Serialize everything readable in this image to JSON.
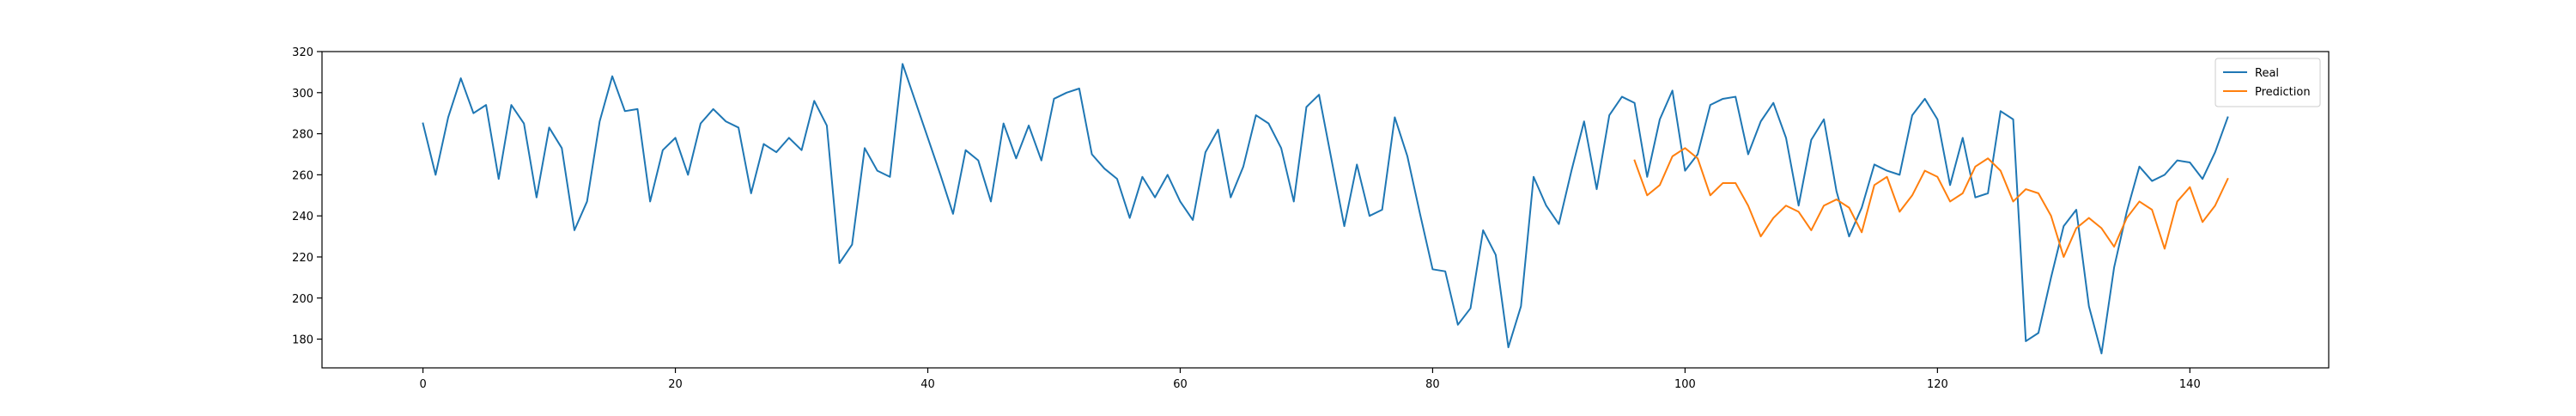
{
  "chart_data": {
    "type": "line",
    "title": "",
    "xlabel": "",
    "ylabel": "",
    "xlim": [
      -8,
      151
    ],
    "ylim": [
      166,
      320
    ],
    "x_ticks": [
      0,
      20,
      40,
      60,
      80,
      100,
      120,
      140
    ],
    "y_ticks": [
      180,
      200,
      220,
      240,
      260,
      280,
      300,
      320
    ],
    "grid": false,
    "legend_position": "top-right",
    "series": [
      {
        "name": "Real",
        "color": "#1f77b4",
        "x_start": 0,
        "values": [
          285,
          260,
          288,
          307,
          290,
          294,
          258,
          294,
          285,
          249,
          283,
          273,
          233,
          247,
          286,
          308,
          291,
          292,
          247,
          272,
          278,
          260,
          285,
          292,
          286,
          283,
          251,
          275,
          271,
          278,
          272,
          296,
          284,
          217,
          226,
          273,
          262,
          259,
          314,
          296,
          278,
          260,
          241,
          272,
          267,
          247,
          285,
          268,
          284,
          267,
          297,
          300,
          302,
          270,
          263,
          258,
          239,
          259,
          249,
          260,
          247,
          238,
          271,
          282,
          249,
          264,
          289,
          285,
          273,
          247,
          293,
          299,
          267,
          235,
          265,
          240,
          243,
          288,
          269,
          241,
          214,
          213,
          187,
          195,
          233,
          221,
          176,
          196,
          259,
          245,
          236,
          262,
          286,
          253,
          289,
          298,
          295,
          259,
          287,
          301,
          262,
          270,
          294,
          297,
          298,
          270,
          286,
          295,
          278,
          245,
          277,
          287,
          252,
          230,
          244,
          265,
          262,
          260,
          289,
          297,
          287,
          255,
          278,
          249,
          251,
          291,
          287,
          179,
          183,
          210,
          235,
          243,
          196,
          173,
          215,
          242,
          264,
          257,
          260,
          267,
          266,
          258,
          271,
          288
        ]
      },
      {
        "name": "Prediction",
        "color": "#ff7f0e",
        "x_start": 96,
        "values": [
          267,
          250,
          255,
          269,
          273,
          268,
          250,
          256,
          256,
          245,
          230,
          239,
          245,
          242,
          233,
          245,
          248,
          244,
          232,
          255,
          259,
          242,
          250,
          262,
          259,
          247,
          251,
          264,
          268,
          262,
          247,
          253,
          251,
          240,
          220,
          234,
          239,
          234,
          225,
          239,
          247,
          243,
          224,
          247,
          254,
          237,
          245,
          258
        ]
      }
    ]
  }
}
